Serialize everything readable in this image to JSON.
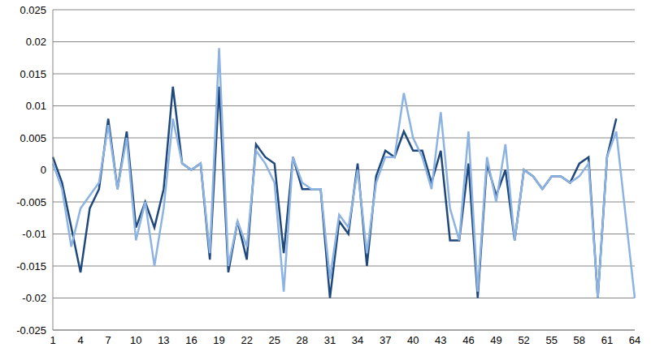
{
  "chart_data": {
    "type": "line",
    "categories": [
      "1",
      null,
      null,
      "4",
      null,
      null,
      "7",
      null,
      null,
      "10",
      null,
      null,
      "13",
      null,
      null,
      "16",
      null,
      null,
      "19",
      null,
      null,
      "22",
      null,
      null,
      "25",
      null,
      null,
      "28",
      null,
      null,
      "31",
      null,
      null,
      "34",
      null,
      null,
      "37",
      null,
      null,
      "40",
      null,
      null,
      "43",
      null,
      null,
      "46",
      null,
      null,
      "49",
      null,
      null,
      "52",
      null,
      null,
      "55",
      null,
      null,
      "58",
      null,
      null,
      "61",
      null,
      null,
      "64"
    ],
    "series": [
      {
        "color": "#1f497d",
        "values": [
          0.002,
          -0.002,
          -0.009,
          -0.016,
          -0.006,
          -0.003,
          0.008,
          -0.003,
          0.006,
          -0.009,
          -0.005,
          -0.009,
          -0.003,
          0.013,
          0.001,
          0,
          0.001,
          -0.014,
          0.013,
          -0.016,
          -0.008,
          -0.014,
          0.004,
          0.002,
          0.001,
          -0.013,
          0.002,
          -0.003,
          -0.003,
          -0.003,
          -0.02,
          -0.008,
          -0.01,
          0.001,
          -0.015,
          -0.001,
          0.003,
          0.002,
          0.006,
          0.003,
          0.003,
          -0.002,
          0.003,
          -0.011,
          -0.011,
          0.001,
          -0.02,
          0.001,
          -0.004,
          0,
          -0.011,
          0,
          -0.001,
          -0.003,
          -0.001,
          -0.001,
          -0.002,
          0.001,
          0.002,
          -0.02,
          0.002,
          0.008,
          null,
          null
        ]
      },
      {
        "color": "#8db3e2",
        "values": [
          0.001,
          -0.003,
          -0.012,
          -0.006,
          -0.004,
          -0.002,
          0.007,
          -0.003,
          0.005,
          -0.011,
          -0.005,
          -0.015,
          -0.006,
          0.008,
          0.001,
          0,
          0.001,
          -0.013,
          0.019,
          -0.015,
          -0.008,
          -0.012,
          0.003,
          0.001,
          -0.002,
          -0.019,
          0.002,
          -0.002,
          -0.003,
          -0.003,
          -0.017,
          -0.007,
          -0.009,
          0,
          -0.013,
          -0.002,
          0.002,
          0.002,
          0.012,
          0.005,
          0.002,
          -0.003,
          0.009,
          -0.006,
          -0.011,
          0.006,
          -0.019,
          0.002,
          -0.005,
          0.004,
          -0.011,
          0,
          -0.001,
          -0.003,
          -0.001,
          -0.001,
          -0.002,
          -0.001,
          0.001,
          -0.02,
          0.002,
          0.006,
          -0.007,
          -0.02
        ]
      }
    ],
    "ylim": [
      -0.025,
      0.025
    ],
    "yticks": [
      -0.025,
      -0.02,
      -0.015,
      -0.01,
      -0.005,
      0,
      0.005,
      0.01,
      0.015,
      0.02,
      0.025
    ],
    "grid": true
  }
}
